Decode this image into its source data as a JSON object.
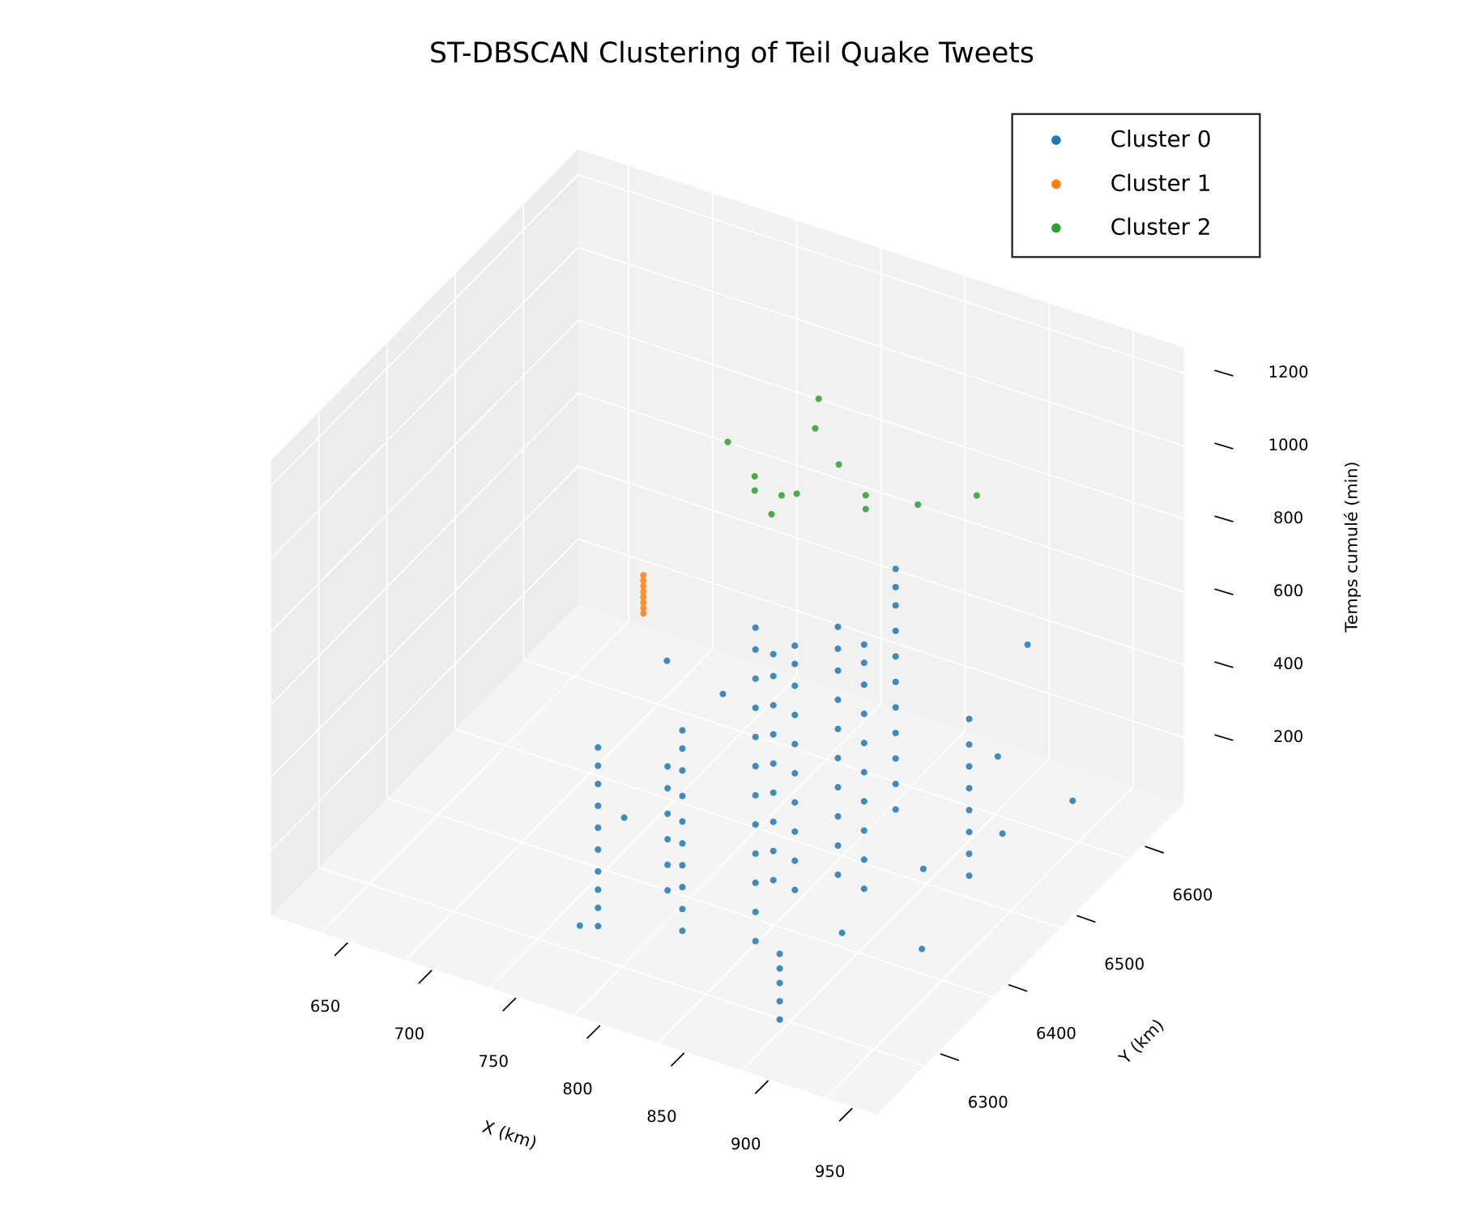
{
  "chart_data": {
    "type": "scatter3d",
    "title": "ST-DBSCAN Clustering of Teil Quake Tweets",
    "xlabel": "X (km)",
    "ylabel": "Y (km)",
    "zlabel": "Temps cumulé (min)",
    "xlim": [
      620,
      980
    ],
    "ylim": [
      6230,
      6680
    ],
    "zlim": [
      20,
      1270
    ],
    "xticks": [
      650,
      700,
      750,
      800,
      850,
      900,
      950
    ],
    "yticks": [
      6300,
      6400,
      6500,
      6600
    ],
    "zticks": [
      200,
      400,
      600,
      800,
      1000,
      1200
    ],
    "grid": true,
    "legend": "upper right",
    "series": [
      {
        "name": "Cluster 0",
        "color": "#1f77b4",
        "x": [
          773,
          773,
          773,
          773,
          773,
          773,
          773,
          773,
          773,
          773,
          813,
          813,
          813,
          813,
          813,
          813,
          813,
          813,
          813,
          813,
          790,
          790,
          790,
          790,
          790,
          790,
          852,
          852,
          852,
          852,
          852,
          852,
          852,
          852,
          852,
          852,
          852,
          852,
          833,
          833,
          833,
          833,
          833,
          833,
          833,
          833,
          833,
          896,
          896,
          896,
          896,
          896,
          847,
          847,
          847,
          847,
          847,
          847,
          847,
          847,
          847,
          847,
          858,
          858,
          858,
          858,
          858,
          858,
          858,
          858,
          858,
          858,
          876,
          876,
          876,
          876,
          876,
          876,
          876,
          876,
          876,
          876,
          855,
          855,
          855,
          855,
          855,
          855,
          855,
          855,
          855,
          855,
          855,
          919,
          919,
          919,
          919,
          919,
          919,
          919,
          919,
          901,
          942,
          730,
          763,
          897,
          927,
          884,
          925,
          921,
          748,
          786
        ],
        "y": [
          6332,
          6332,
          6332,
          6332,
          6332,
          6332,
          6332,
          6332,
          6332,
          6332,
          6357,
          6357,
          6357,
          6357,
          6357,
          6357,
          6357,
          6357,
          6357,
          6357,
          6392,
          6392,
          6392,
          6392,
          6392,
          6392,
          6368,
          6368,
          6368,
          6368,
          6368,
          6368,
          6368,
          6368,
          6368,
          6368,
          6368,
          6368,
          6441,
          6441,
          6441,
          6441,
          6441,
          6441,
          6441,
          6441,
          6441,
          6295,
          6295,
          6295,
          6295,
          6295,
          6438,
          6438,
          6438,
          6438,
          6438,
          6438,
          6438,
          6438,
          6438,
          6438,
          6474,
          6474,
          6474,
          6474,
          6474,
          6474,
          6474,
          6474,
          6474,
          6474,
          6468,
          6468,
          6468,
          6468,
          6468,
          6468,
          6468,
          6468,
          6468,
          6468,
          6566,
          6566,
          6566,
          6566,
          6566,
          6566,
          6566,
          6566,
          6566,
          6566,
          6566,
          6516,
          6516,
          6516,
          6516,
          6516,
          6516,
          6516,
          6516,
          6646,
          6611,
          6539,
          6330,
          6503,
          6427,
          6416,
          6550,
          6553,
          6432,
          6483
        ],
        "z": [
          30,
          80,
          130,
          180,
          240,
          300,
          360,
          420,
          470,
          520,
          30,
          90,
          150,
          210,
          270,
          330,
          400,
          470,
          530,
          580,
          40,
          110,
          180,
          250,
          320,
          380,
          40,
          120,
          200,
          280,
          360,
          440,
          520,
          600,
          680,
          760,
          840,
          900,
          40,
          120,
          200,
          280,
          360,
          440,
          520,
          600,
          660,
          30,
          80,
          130,
          170,
          210,
          40,
          120,
          200,
          280,
          360,
          440,
          520,
          600,
          660,
          710,
          30,
          110,
          190,
          270,
          350,
          430,
          510,
          590,
          650,
          710,
          30,
          110,
          190,
          270,
          350,
          430,
          510,
          590,
          650,
          700,
          30,
          100,
          170,
          240,
          310,
          380,
          450,
          520,
          590,
          640,
          690,
          40,
          100,
          160,
          220,
          280,
          340,
          400,
          470,
          400,
          100,
          300,
          20,
          50,
          20,
          20,
          100,
          300,
          100,
          400
        ]
      },
      {
        "name": "Cluster 1",
        "color": "#ff7f0e",
        "x": [
          671,
          671,
          671,
          671,
          671,
          671,
          671,
          671
        ],
        "y": [
          6650,
          6650,
          6650,
          6650,
          6650,
          6650,
          6650,
          6650
        ],
        "z": [
          130,
          145,
          160,
          175,
          190,
          205,
          220,
          235
        ]
      },
      {
        "name": "Cluster 2",
        "color": "#2ca02c",
        "x": [
          782,
          798,
          798,
          808,
          814,
          823,
          834,
          836,
          848,
          864,
          864,
          895,
          930
        ],
        "y": [
          6500,
          6500,
          6500,
          6500,
          6500,
          6500,
          6500,
          6500,
          6500,
          6500,
          6500,
          6500,
          6500
        ],
        "z": [
          1053,
          983,
          944,
          894,
          955,
          973,
          1169,
          1253,
          1091,
          1031,
          993,
          1052,
          1130
        ]
      }
    ]
  }
}
